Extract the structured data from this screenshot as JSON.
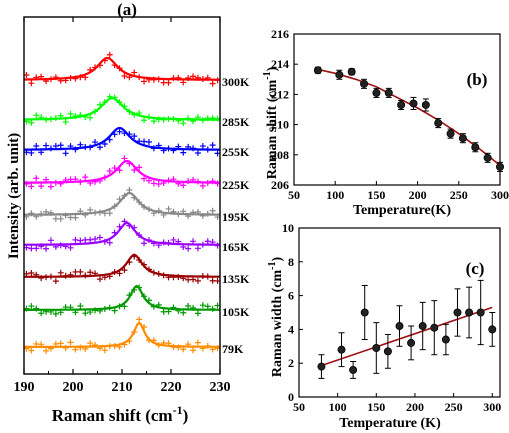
{
  "figure": {
    "panel_a": {
      "label": "(a)",
      "xlabel_main": "Raman shift (cm",
      "xlabel_sup": "-1",
      "xlabel_close": ")",
      "ylabel": "Intensity (arb. unit)"
    },
    "panel_b": {
      "label": "(b)",
      "xlabel": "Temperature(K)",
      "ylabel_main": "Raman shift (cm",
      "ylabel_sup": "-1",
      "ylabel_close": ")"
    },
    "panel_c": {
      "label": "(c)",
      "xlabel": "Temperature (K)",
      "ylabel_main": "Raman width (cm",
      "ylabel_sup": "-1",
      "ylabel_close": ")"
    }
  },
  "chart_data": [
    {
      "panel": "(a)",
      "type": "line",
      "xlim": [
        190,
        230
      ],
      "x_ticks": [
        190,
        200,
        210,
        220,
        230
      ],
      "y_ticks": [],
      "series": [
        {
          "name": "300K",
          "color": "#ff0000",
          "peak": 207.0,
          "width": 2.6,
          "amp": 22
        },
        {
          "name": "285K",
          "color": "#00ff00",
          "peak": 208.0,
          "width": 2.8,
          "amp": 22
        },
        {
          "name": "255K",
          "color": "#0000ff",
          "peak": 209.5,
          "width": 2.6,
          "amp": 22
        },
        {
          "name": "225K",
          "color": "#ff00ff",
          "peak": 211.0,
          "width": 2.6,
          "amp": 22
        },
        {
          "name": "195K",
          "color": "#888888",
          "peak": 211.5,
          "width": 2.4,
          "amp": 22
        },
        {
          "name": "165K",
          "color": "#9900ff",
          "peak": 211.0,
          "width": 2.2,
          "amp": 22
        },
        {
          "name": "135K",
          "color": "#990000",
          "peak": 212.5,
          "width": 2.0,
          "amp": 22
        },
        {
          "name": "105K",
          "color": "#009900",
          "peak": 213.0,
          "width": 1.6,
          "amp": 24
        },
        {
          "name": "79K",
          "color": "#ff8c00",
          "peak": 213.5,
          "width": 1.4,
          "amp": 24
        }
      ]
    },
    {
      "panel": "(b)",
      "type": "scatter",
      "xlabel": "Temperature(K)",
      "ylabel": "Raman shift (cm-1)",
      "xlim": [
        50,
        300
      ],
      "ylim": [
        206,
        216
      ],
      "x_ticks": [
        50,
        100,
        150,
        200,
        250,
        300
      ],
      "y_ticks": [
        206,
        208,
        210,
        212,
        214,
        216
      ],
      "x": [
        79,
        105,
        120,
        135,
        150,
        165,
        180,
        195,
        210,
        225,
        240,
        255,
        270,
        285,
        300
      ],
      "y": [
        213.6,
        213.3,
        213.5,
        212.7,
        212.1,
        212.1,
        211.3,
        211.4,
        211.3,
        210.1,
        209.4,
        209.1,
        208.5,
        207.8,
        207.2
      ],
      "yerr": [
        0.2,
        0.3,
        0.2,
        0.3,
        0.3,
        0.3,
        0.3,
        0.4,
        0.4,
        0.3,
        0.3,
        0.3,
        0.3,
        0.3,
        0.3
      ],
      "fit": {
        "x": [
          75,
          100,
          125,
          150,
          175,
          200,
          225,
          250,
          275,
          300
        ],
        "y": [
          213.7,
          213.4,
          213.0,
          212.5,
          211.8,
          211.1,
          210.3,
          209.4,
          208.4,
          207.3
        ]
      }
    },
    {
      "panel": "(c)",
      "type": "scatter",
      "xlabel": "Temperature (K)",
      "ylabel": "Raman width (cm-1)",
      "xlim": [
        50,
        310
      ],
      "ylim": [
        0,
        10
      ],
      "x_ticks": [
        50,
        100,
        150,
        200,
        250,
        300
      ],
      "y_ticks": [
        0,
        2,
        4,
        6,
        8,
        10
      ],
      "x": [
        79,
        105,
        120,
        135,
        150,
        165,
        180,
        195,
        210,
        225,
        240,
        255,
        270,
        285,
        300
      ],
      "y": [
        1.8,
        2.8,
        1.6,
        5.0,
        2.9,
        2.7,
        4.2,
        3.2,
        4.2,
        4.1,
        3.4,
        5.0,
        5.0,
        5.0,
        4.0
      ],
      "yerr": [
        0.7,
        1.0,
        0.5,
        1.6,
        1.5,
        1.0,
        1.2,
        1.0,
        1.4,
        1.6,
        0.9,
        1.4,
        1.5,
        1.9,
        1.0
      ],
      "fit": {
        "x": [
          75,
          300
        ],
        "y": [
          1.8,
          5.3
        ]
      }
    }
  ]
}
